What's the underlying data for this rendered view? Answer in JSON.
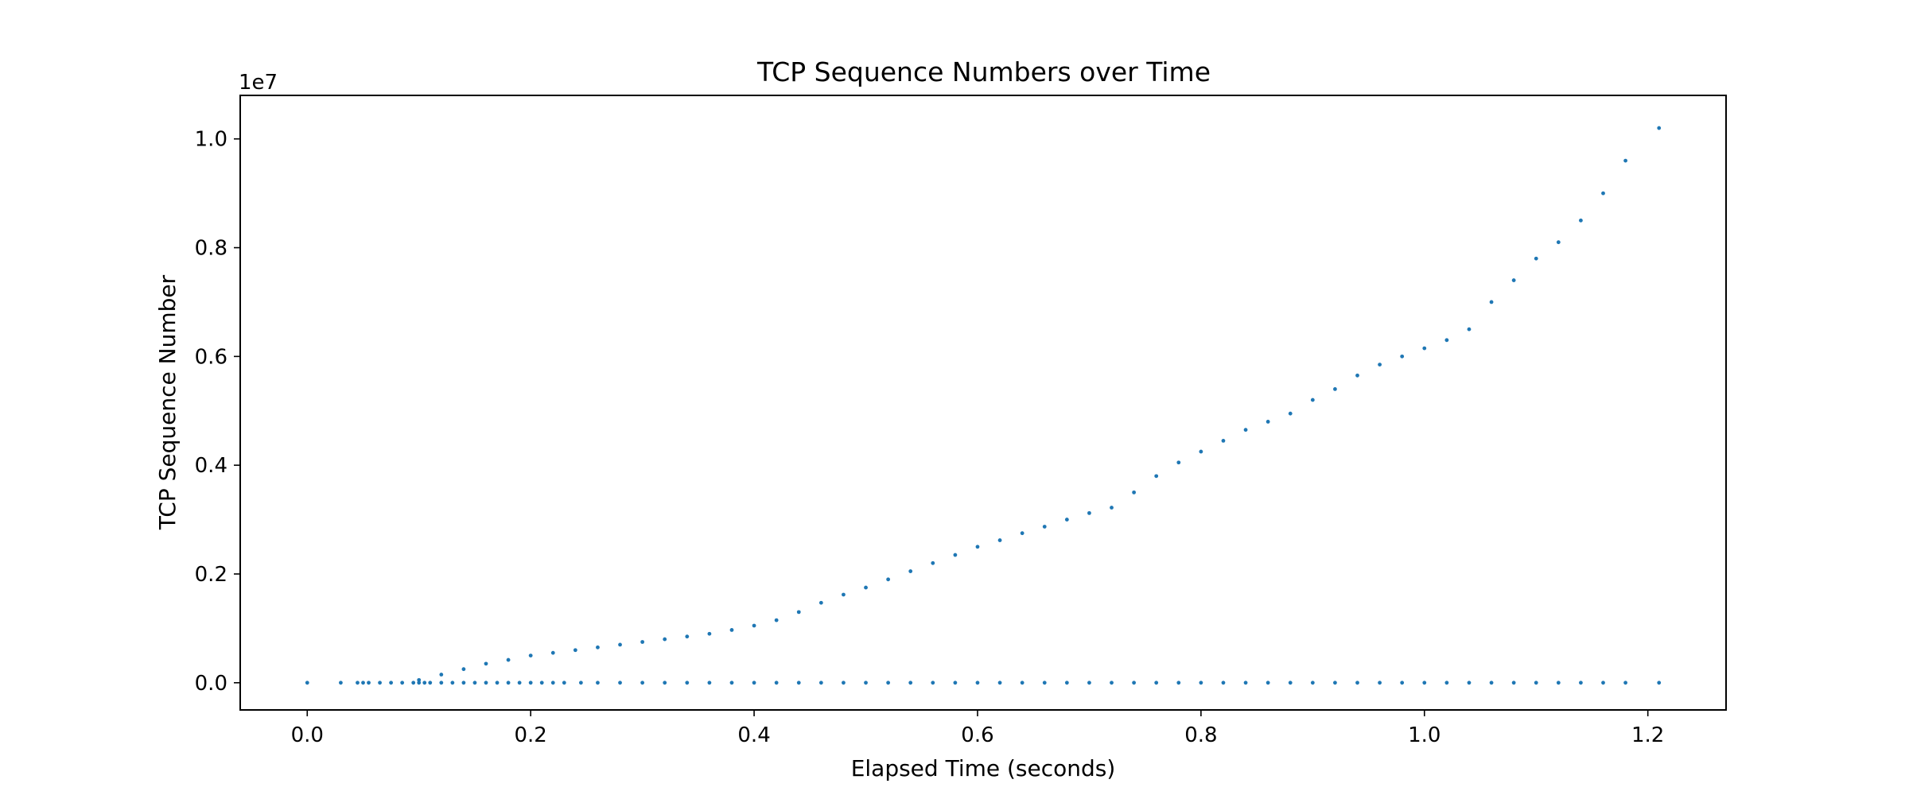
{
  "chart_data": {
    "type": "scatter",
    "title": "TCP Sequence Numbers over Time",
    "xlabel": "Elapsed Time (seconds)",
    "ylabel": "TCP Sequence Number",
    "y_offset_label": "1e7",
    "xlim": [
      -0.06,
      1.27
    ],
    "ylim": [
      -0.05,
      1.08
    ],
    "x_ticks": [
      0.0,
      0.2,
      0.4,
      0.6,
      0.8,
      1.0,
      1.2
    ],
    "x_tick_labels": [
      "0.0",
      "0.2",
      "0.4",
      "0.6",
      "0.8",
      "1.0",
      "1.2"
    ],
    "y_ticks": [
      0.0,
      0.2,
      0.4,
      0.6,
      0.8,
      1.0
    ],
    "y_tick_labels": [
      "0.0",
      "0.2",
      "0.4",
      "0.6",
      "0.8",
      "1.0"
    ],
    "grid": false,
    "marker_color": "#1f77b4",
    "series": [
      {
        "x": [
          0.1,
          0.12,
          0.14,
          0.16,
          0.18,
          0.2,
          0.22,
          0.24,
          0.26,
          0.28,
          0.3,
          0.32,
          0.34,
          0.36,
          0.38,
          0.4,
          0.42,
          0.44,
          0.46,
          0.48,
          0.5,
          0.52,
          0.54,
          0.56,
          0.58,
          0.6,
          0.62,
          0.64,
          0.66,
          0.68,
          0.7,
          0.72,
          0.74,
          0.76,
          0.78,
          0.8,
          0.82,
          0.84,
          0.86,
          0.88,
          0.9,
          0.92,
          0.94,
          0.96,
          0.98,
          1.0,
          1.02,
          1.04,
          1.06,
          1.08,
          1.1,
          1.12,
          1.14,
          1.16,
          1.18,
          1.21
        ],
        "y": [
          0.005,
          0.015,
          0.025,
          0.035,
          0.042,
          0.05,
          0.055,
          0.06,
          0.065,
          0.07,
          0.075,
          0.08,
          0.085,
          0.09,
          0.097,
          0.105,
          0.115,
          0.13,
          0.147,
          0.162,
          0.175,
          0.19,
          0.205,
          0.22,
          0.235,
          0.25,
          0.262,
          0.275,
          0.287,
          0.3,
          0.312,
          0.322,
          0.35,
          0.38,
          0.405,
          0.425,
          0.445,
          0.465,
          0.48,
          0.495,
          0.52,
          0.54,
          0.565,
          0.585,
          0.6,
          0.615,
          0.63,
          0.65,
          0.7,
          0.74,
          0.78,
          0.81,
          0.85,
          0.9,
          0.96,
          1.02
        ]
      },
      {
        "x": [
          0.0,
          0.03,
          0.045,
          0.05,
          0.055,
          0.065,
          0.075,
          0.085,
          0.095,
          0.1,
          0.105,
          0.11,
          0.12,
          0.13,
          0.14,
          0.15,
          0.16,
          0.17,
          0.18,
          0.19,
          0.2,
          0.21,
          0.22,
          0.23,
          0.245,
          0.26,
          0.28,
          0.3,
          0.32,
          0.34,
          0.36,
          0.38,
          0.4,
          0.42,
          0.44,
          0.46,
          0.48,
          0.5,
          0.52,
          0.54,
          0.56,
          0.58,
          0.6,
          0.62,
          0.64,
          0.66,
          0.68,
          0.7,
          0.72,
          0.74,
          0.76,
          0.78,
          0.8,
          0.82,
          0.84,
          0.86,
          0.88,
          0.9,
          0.92,
          0.94,
          0.96,
          0.98,
          1.0,
          1.02,
          1.04,
          1.06,
          1.08,
          1.1,
          1.12,
          1.14,
          1.16,
          1.18,
          1.21
        ],
        "y": [
          0.0,
          0.0,
          0.0,
          0.0,
          0.0,
          0.0,
          0.0,
          0.0,
          0.0,
          0.0,
          0.0,
          0.0,
          0.0,
          0.0,
          0.0,
          0.0,
          0.0,
          0.0,
          0.0,
          0.0,
          0.0,
          0.0,
          0.0,
          0.0,
          0.0,
          0.0,
          0.0,
          0.0,
          0.0,
          0.0,
          0.0,
          0.0,
          0.0,
          0.0,
          0.0,
          0.0,
          0.0,
          0.0,
          0.0,
          0.0,
          0.0,
          0.0,
          0.0,
          0.0,
          0.0,
          0.0,
          0.0,
          0.0,
          0.0,
          0.0,
          0.0,
          0.0,
          0.0,
          0.0,
          0.0,
          0.0,
          0.0,
          0.0,
          0.0,
          0.0,
          0.0,
          0.0,
          0.0,
          0.0,
          0.0,
          0.0,
          0.0,
          0.0,
          0.0,
          0.0,
          0.0,
          0.0,
          0.0
        ]
      }
    ]
  }
}
